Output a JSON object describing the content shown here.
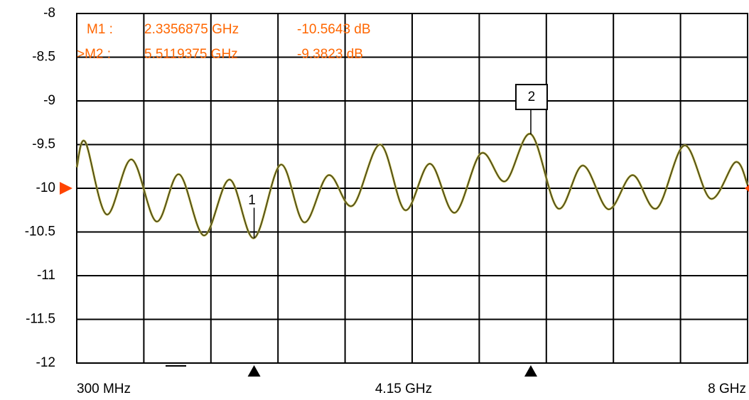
{
  "chart_data": {
    "type": "line",
    "x": [
      0.3,
      0.398,
      0.643,
      0.928,
      1.214,
      1.475,
      1.76,
      2.054,
      2.335,
      2.641,
      2.91,
      3.188,
      3.465,
      3.783,
      4.068,
      4.354,
      4.639,
      4.941,
      5.218,
      5.512,
      5.823,
      6.109,
      6.402,
      6.68,
      6.957,
      7.275,
      7.577,
      7.862,
      8.0
    ],
    "series": [
      {
        "color": "#b0a830",
        "values": [
          -9.76,
          -9.47,
          -10.3,
          -9.67,
          -10.38,
          -9.84,
          -10.54,
          -9.9,
          -10.57,
          -9.73,
          -10.39,
          -9.85,
          -10.2,
          -9.5,
          -10.25,
          -9.72,
          -10.28,
          -9.6,
          -9.92,
          -9.38,
          -10.23,
          -9.74,
          -10.24,
          -9.85,
          -10.23,
          -9.51,
          -10.12,
          -9.7,
          -9.96
        ]
      }
    ],
    "xlim": [
      0.3,
      8
    ],
    "xticks": [
      {
        "value": 0.3,
        "label": "300 MHz"
      },
      {
        "value": 4.15,
        "label": "4.15 GHz"
      },
      {
        "value": 8,
        "label": "8 GHz"
      }
    ],
    "xgrid": [
      0.3,
      1.07,
      1.84,
      2.61,
      3.38,
      4.15,
      4.92,
      5.69,
      6.46,
      7.23,
      8
    ],
    "ylim": [
      -12,
      -8
    ],
    "yticks": [
      -8,
      -8.5,
      -9,
      -9.5,
      -10,
      -10.5,
      -11,
      -11.5,
      -12
    ],
    "grid": true,
    "ref_level": -10,
    "ref_color": "#ff4400",
    "marker_color": "#ff6600",
    "markers": [
      {
        "label": "M1  :",
        "freq_label": "2.3356875 GHz",
        "value_label": "-10.5643  dB",
        "freq": 2.3356875,
        "value": -10.5643,
        "tag": "1"
      },
      {
        "label": ">M2  :",
        "freq_label": "5.5119375 GHz",
        "value_label": "-9.3823  dB",
        "freq": 5.5119375,
        "value": -9.3823,
        "tag": "2"
      }
    ]
  }
}
